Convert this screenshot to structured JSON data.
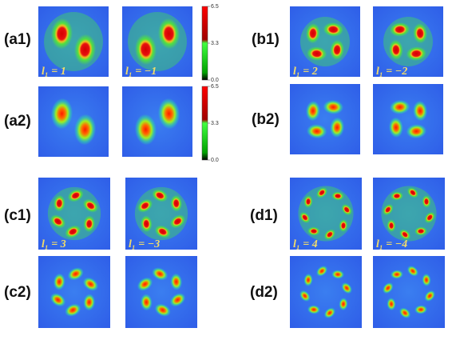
{
  "panels": [
    {
      "label": "(a1)",
      "captions": [
        "l₁ = 1",
        "l₁ = −1"
      ]
    },
    {
      "label": "(a2)"
    },
    {
      "label": "(b1)",
      "captions": [
        "l₁ = 2",
        "l₁ = −2"
      ]
    },
    {
      "label": "(b2)"
    },
    {
      "label": "(c1)",
      "captions": [
        "l₁ = 3",
        "l₁ = −3"
      ]
    },
    {
      "label": "(c2)"
    },
    {
      "label": "(d1)",
      "captions": [
        "l₁ = 4",
        "l₁ = −4"
      ]
    },
    {
      "label": "(d2)"
    }
  ],
  "colorbars": [
    {
      "ticks": [
        "6.5",
        "3.3",
        "0.0"
      ]
    },
    {
      "ticks": [
        "6.5",
        "3.3",
        "0.0"
      ]
    }
  ]
}
